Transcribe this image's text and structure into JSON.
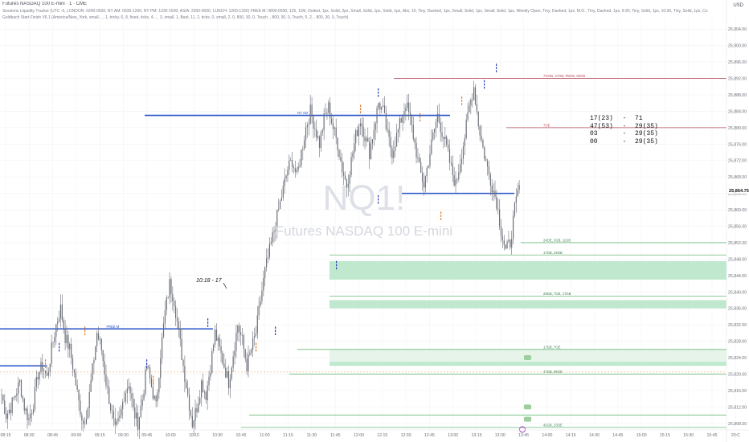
{
  "header": {
    "title": "Futures NASDAQ 100 E-mini · 1 · CME",
    "indicator1": "Sessions Liquidity Tracker (UTC -5, LONDON: 0200-0500, NY AM: 0930-1200, NY PM: 1330-1600, ASIA: 2000-0000, LUNCH: 1200-1330) FREE M: 0800-0930, 125, 11M, Dotted, 1px, Solid, 2px, Small, Solid, 1px, Solid, 1px, Abv, 10, Tiny, Dashed, 1px, Small, Solid, 1px, Small, Solid, 1px, Weekly Open, Tiny, Dashed, 1px, M.O., Tiny, Dashed, 1px, 9:30, Tiny, Solid, 1px, 10:30, Tiny, Solid, 1px, Co",
    "indicator2": "Goldbach Start Finish V6.1 (America/New_York, small, , , 1, tricky, 6, 8, fixed, ticks, 4, , , 3, small, 1, Bast, 11, 2, ticks, 0, small, 2, 0, 800, 30, 0, Touch, , 800, 30, 0, Touch, 5, 2, , 800, 30, 0, Touch)",
    "currency": "USD"
  },
  "watermark": {
    "symbol": "NQ1!",
    "name": "Futures NASDAQ 100 E-mini"
  },
  "stats_table": [
    [
      "17(23)",
      "-",
      "71"
    ],
    [
      "47(53)",
      "-",
      "29(35)"
    ],
    [
      "03",
      "-",
      "29(35)"
    ],
    [
      "00",
      "-",
      "29(35)"
    ]
  ],
  "chart_data": {
    "type": "candlestick",
    "symbol": "NQ1!",
    "x_ticks": [
      "08:15",
      "08:30",
      "08:45",
      "09:00",
      "09:15",
      "09:30",
      "09:45",
      "10:00",
      "10:15",
      "10:30",
      "10:45",
      "11:00",
      "11:15",
      "11:30",
      "11:45",
      "12:00",
      "12:15",
      "12:30",
      "12:45",
      "13:00",
      "13:15",
      "13:30",
      "13:45",
      "14:00",
      "14:15",
      "14:30",
      "14:45",
      "15:00",
      "15:15",
      "15:30",
      "15:45",
      "20:C"
    ],
    "y_ticks": [
      "25,904.00",
      "25,900.00",
      "25,896.00",
      "25,892.00",
      "25,888.00",
      "25,884.00",
      "25,880.00",
      "25,876.00",
      "25,872.00",
      "25,868.00",
      "25,864.00",
      "25,860.00",
      "25,856.00",
      "25,852.00",
      "25,848.00",
      "25,844.00",
      "25,840.00",
      "25,836.00",
      "25,832.00",
      "25,828.00",
      "25,824.00",
      "25,820.00",
      "25,816.00",
      "25,812.00",
      "25,808.00"
    ],
    "ylim": [
      25806,
      25906
    ],
    "last_price": "25,864.75",
    "high_label": "10:18 - 17",
    "price_path": [
      [
        0,
        25815
      ],
      [
        3,
        25810
      ],
      [
        6,
        25812
      ],
      [
        9,
        25815
      ],
      [
        12,
        25818
      ],
      [
        15,
        25812
      ],
      [
        18,
        25809
      ],
      [
        21,
        25813
      ],
      [
        24,
        25820
      ],
      [
        27,
        25822
      ],
      [
        30,
        25819
      ],
      [
        33,
        25826
      ],
      [
        36,
        25832
      ],
      [
        39,
        25836
      ],
      [
        42,
        25829
      ],
      [
        45,
        25826
      ],
      [
        48,
        25820
      ],
      [
        51,
        25813
      ],
      [
        54,
        25808
      ],
      [
        57,
        25812
      ],
      [
        60,
        25821
      ],
      [
        63,
        25830
      ],
      [
        66,
        25826
      ],
      [
        69,
        25818
      ],
      [
        72,
        25812
      ],
      [
        75,
        25806
      ],
      [
        78,
        25809
      ],
      [
        81,
        25815
      ],
      [
        84,
        25818
      ],
      [
        87,
        25811
      ],
      [
        90,
        25808
      ],
      [
        93,
        25814
      ],
      [
        96,
        25822
      ],
      [
        99,
        25817
      ],
      [
        102,
        25812
      ],
      [
        105,
        25825
      ],
      [
        108,
        25835
      ],
      [
        111,
        25842
      ],
      [
        114,
        25838
      ],
      [
        117,
        25830
      ],
      [
        120,
        25822
      ],
      [
        123,
        25815
      ],
      [
        126,
        25808
      ],
      [
        129,
        25812
      ],
      [
        132,
        25818
      ],
      [
        135,
        25815
      ],
      [
        138,
        25822
      ],
      [
        141,
        25830
      ],
      [
        144,
        25826
      ],
      [
        147,
        25822
      ],
      [
        150,
        25818
      ],
      [
        153,
        25825
      ],
      [
        156,
        25832
      ],
      [
        159,
        25828
      ],
      [
        162,
        25822
      ],
      [
        165,
        25826
      ],
      [
        168,
        25830
      ],
      [
        171,
        25838
      ],
      [
        174,
        25845
      ],
      [
        177,
        25850
      ],
      [
        180,
        25855
      ],
      [
        183,
        25860
      ],
      [
        186,
        25865
      ],
      [
        189,
        25870
      ],
      [
        192,
        25872
      ],
      [
        195,
        25868
      ],
      [
        198,
        25874
      ],
      [
        201,
        25880
      ],
      [
        204,
        25884
      ],
      [
        207,
        25880
      ],
      [
        210,
        25876
      ],
      [
        213,
        25882
      ],
      [
        216,
        25885
      ],
      [
        219,
        25880
      ],
      [
        222,
        25876
      ],
      [
        225,
        25870
      ],
      [
        228,
        25866
      ],
      [
        231,
        25872
      ],
      [
        234,
        25878
      ],
      [
        237,
        25882
      ],
      [
        240,
        25878
      ],
      [
        243,
        25874
      ],
      [
        246,
        25880
      ],
      [
        249,
        25886
      ],
      [
        252,
        25884
      ],
      [
        255,
        25878
      ],
      [
        258,
        25874
      ],
      [
        261,
        25878
      ],
      [
        264,
        25882
      ],
      [
        267,
        25886
      ],
      [
        270,
        25882
      ],
      [
        273,
        25876
      ],
      [
        276,
        25870
      ],
      [
        279,
        25866
      ],
      [
        282,
        25872
      ],
      [
        285,
        25878
      ],
      [
        288,
        25883
      ],
      [
        291,
        25879
      ],
      [
        294,
        25875
      ],
      [
        297,
        25870
      ],
      [
        300,
        25866
      ],
      [
        303,
        25872
      ],
      [
        306,
        25878
      ],
      [
        309,
        25885
      ],
      [
        312,
        25890
      ],
      [
        315,
        25881
      ],
      [
        318,
        25875
      ],
      [
        321,
        25870
      ],
      [
        324,
        25866
      ],
      [
        327,
        25862
      ],
      [
        330,
        25855
      ],
      [
        333,
        25850
      ],
      [
        336,
        25852
      ],
      [
        339,
        25860
      ],
      [
        342,
        25866
      ]
    ],
    "levels": [
      {
        "name": "NY AM hi",
        "price": 25892,
        "color": "#b84a5a",
        "label": "7%GB, 47GB, PBGB, 60GB"
      },
      {
        "name": "TOE",
        "price": 25880,
        "color": "#b84a5a",
        "label": "7OE"
      },
      {
        "name": "ny-am-open",
        "price": 25883,
        "color": "#2550c8",
        "label": "NY AM"
      },
      {
        "name": "free-m",
        "price": 25831,
        "color": "#2550c8",
        "label": "FREE M"
      },
      {
        "name": "asia",
        "price": 25822,
        "color": "#2550c8",
        "label": ""
      },
      {
        "name": "ny-mid",
        "price": 25864,
        "color": "#2550c8",
        "label": ""
      },
      {
        "name": "g1",
        "price": 25852,
        "color": "#6bb87a",
        "label": "24OE, 3GB, 11GB"
      },
      {
        "name": "g2",
        "price": 25849,
        "color": "#6bb87a",
        "label": "17GB, 29GB"
      },
      {
        "name": "g3",
        "price": 25839,
        "color": "#6bb87a",
        "label": "29GB, 7OE, 17GB"
      },
      {
        "name": "g4",
        "price": 25826,
        "color": "#6bb87a",
        "label": "17GB, 7OE"
      },
      {
        "name": "g5",
        "price": 25820,
        "color": "#6bb87a",
        "label": "47GB, 96OE"
      },
      {
        "name": "g6",
        "price": 25810,
        "color": "#6bb87a",
        "label": ""
      },
      {
        "name": "g7",
        "price": 25807,
        "color": "#6bb87a",
        "label": "41GB, 23OE"
      }
    ],
    "zones": [
      {
        "top": 25847.5,
        "bottom": 25843,
        "color": "#bfe8cf"
      },
      {
        "top": 25838,
        "bottom": 25836,
        "color": "#bfe8cf"
      },
      {
        "top": 25826,
        "bottom": 25823,
        "color": "#e6f4ea"
      },
      {
        "top": 25823,
        "bottom": 25822,
        "color": "#bfe8cf"
      }
    ],
    "colors": {
      "candle": "#6b6f78",
      "bg": "#ffffff",
      "grid": "#f0f2f5",
      "axis_text": "#6b6f78",
      "blue": "#2550c8",
      "red": "#b84a5a",
      "green": "#6bb87a",
      "orange": "#e07a28",
      "label_blue": "#2a3fb0"
    }
  }
}
